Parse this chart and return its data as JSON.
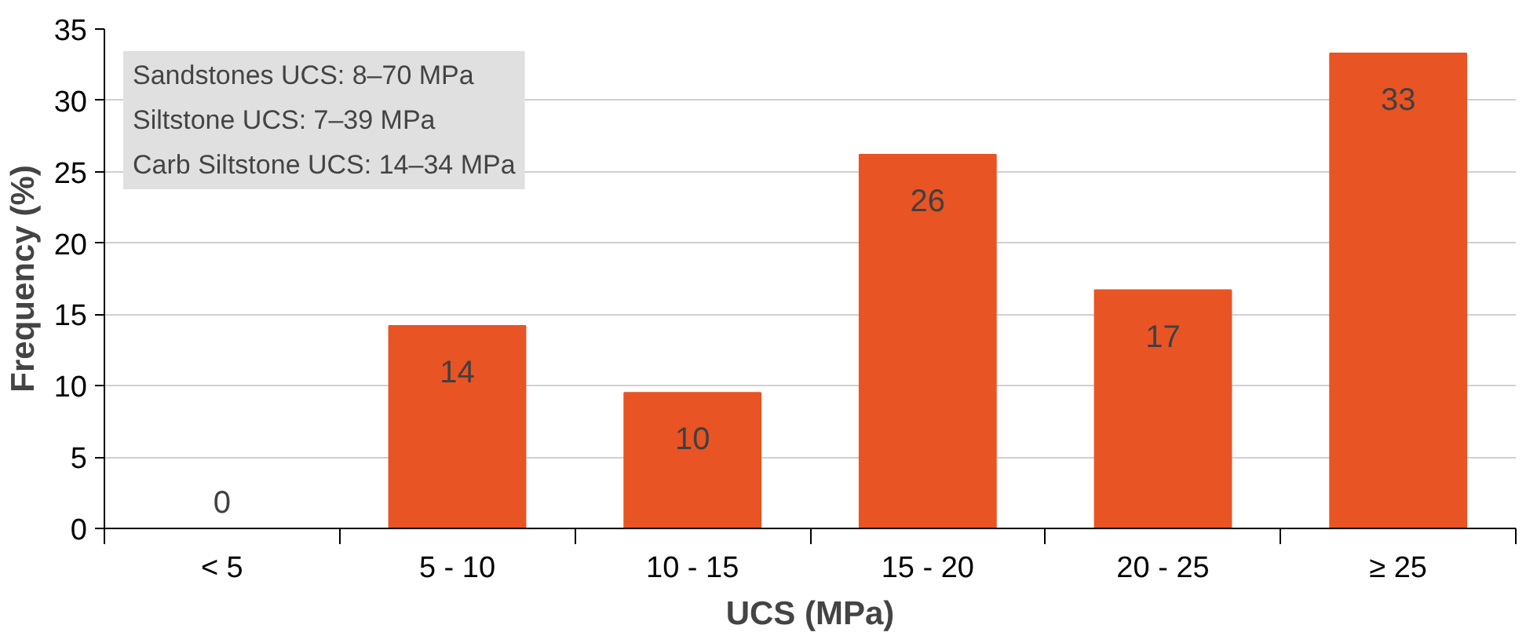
{
  "chart_data": {
    "type": "bar",
    "xlabel": "UCS (MPa)",
    "ylabel": "Frequency (%)",
    "categories": [
      "< 5",
      "5 - 10",
      "10 - 15",
      "15 - 20",
      "20 - 25",
      "≥ 25"
    ],
    "values": [
      0,
      14.2,
      9.5,
      26.2,
      16.7,
      33.3
    ],
    "value_labels": [
      "0",
      "14",
      "10",
      "26",
      "17",
      "33"
    ],
    "color": "#e85424",
    "ylim": [
      0,
      35
    ],
    "yticks": [
      0,
      5,
      10,
      15,
      20,
      25,
      30,
      35
    ],
    "grid": "y",
    "annotations": [
      "Sandstones UCS: 8–70 MPa",
      "Siltstone UCS: 7–39 MPa",
      "Carb Siltstone UCS: 14–34 MPa"
    ]
  }
}
